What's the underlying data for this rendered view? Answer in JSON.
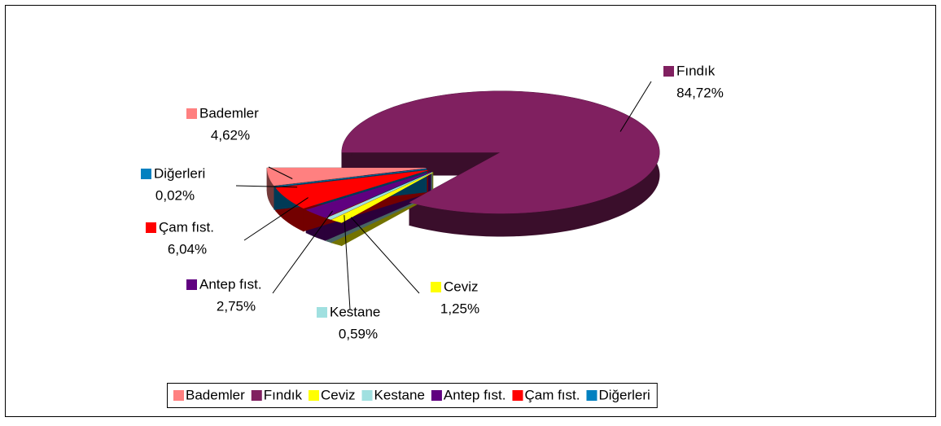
{
  "chart_data": {
    "type": "pie",
    "categories": [
      "Bademler",
      "Fındık",
      "Ceviz",
      "Kestane",
      "Antep fıst.",
      "Çam fıst.",
      "Diğerleri"
    ],
    "values": [
      4.62,
      84.72,
      1.25,
      0.59,
      2.75,
      6.04,
      0.02
    ],
    "value_labels": [
      "4,62%",
      "84,72%",
      "1,25%",
      "0,59%",
      "2,75%",
      "6,04%",
      "0,02%"
    ],
    "colors": [
      "#ff8080",
      "#802060",
      "#ffff00",
      "#a0e0e0",
      "#600080",
      "#ff0000",
      "#0080c0"
    ],
    "legend": "bottom"
  }
}
